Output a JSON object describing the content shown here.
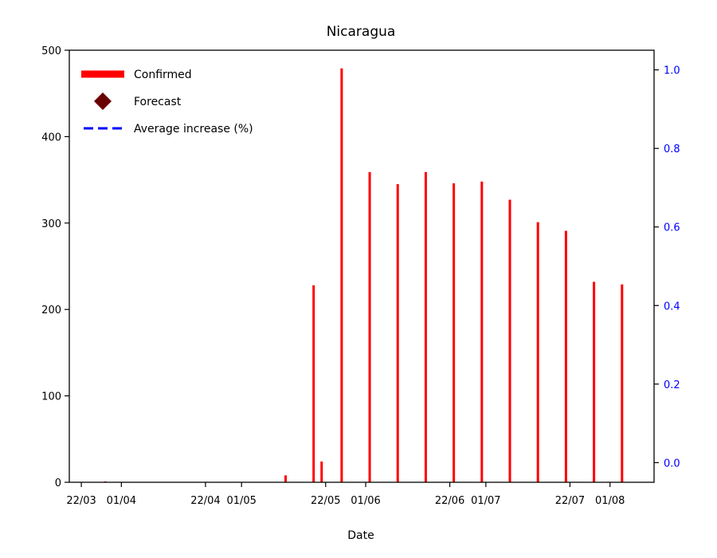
{
  "chart_data": {
    "type": "bar",
    "title": "Nicaragua",
    "xlabel": "Date",
    "ylabel": "",
    "ylim": [
      0,
      500
    ],
    "y_ticks": [
      0,
      100,
      200,
      300,
      400,
      500
    ],
    "y2lim": [
      -0.05,
      1.05
    ],
    "y2_ticks": [
      "0.0",
      "0.2",
      "0.4",
      "0.6",
      "0.8",
      "1.0"
    ],
    "x_ticks": [
      "22/03",
      "01/04",
      "22/04",
      "01/05",
      "22/05",
      "01/06",
      "22/06",
      "01/07",
      "22/07",
      "01/08"
    ],
    "x_tick_dates": [
      "2020-03-22",
      "2020-04-01",
      "2020-04-22",
      "2020-05-01",
      "2020-05-22",
      "2020-06-01",
      "2020-06-22",
      "2020-07-01",
      "2020-07-22",
      "2020-08-01"
    ],
    "x_range": [
      "2020-03-19",
      "2020-08-12"
    ],
    "series": [
      {
        "name": "Confirmed",
        "color": "#ff0000",
        "dates": [
          "2020-03-28",
          "2020-05-12",
          "2020-05-19",
          "2020-05-21",
          "2020-05-26",
          "2020-06-02",
          "2020-06-09",
          "2020-06-16",
          "2020-06-23",
          "2020-06-30",
          "2020-07-07",
          "2020-07-14",
          "2020-07-21",
          "2020-07-28",
          "2020-08-04"
        ],
        "values": [
          1,
          8,
          228,
          24,
          479,
          359,
          345,
          359,
          346,
          348,
          327,
          301,
          291,
          232,
          229
        ]
      },
      {
        "name": "Forecast",
        "color": "#6b0000",
        "marker": "diamond",
        "dates": [],
        "values": []
      },
      {
        "name": "Average increase (%)",
        "color": "#0000ff",
        "style": "dashed",
        "axis": "right",
        "dates": [],
        "values": []
      }
    ],
    "legend_position": "top-left",
    "grid": false
  }
}
